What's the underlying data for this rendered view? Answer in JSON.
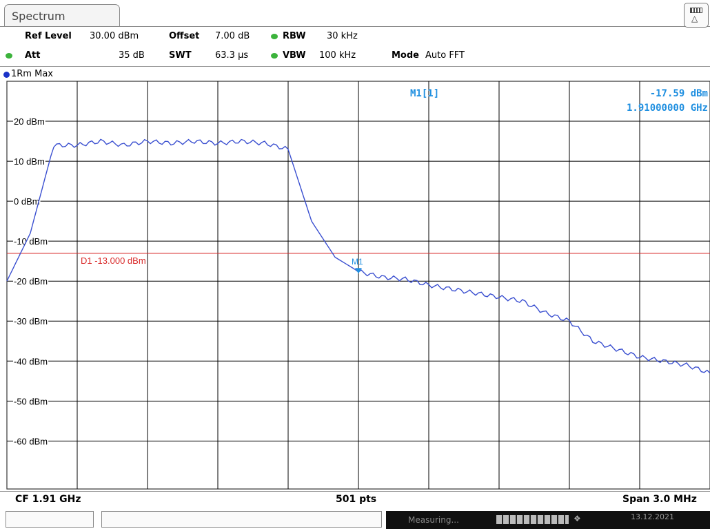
{
  "window": {
    "tab_label": "Spectrum"
  },
  "settings": {
    "ref_level_label": "Ref Level",
    "ref_level_value": "30.00 dBm",
    "offset_label": "Offset",
    "offset_value": "7.00 dB",
    "rbw_label": "RBW",
    "rbw_value": "30 kHz",
    "att_label": "Att",
    "att_value": "35 dB",
    "swt_label": "SWT",
    "swt_value": "63.3 µs",
    "vbw_label": "VBW",
    "vbw_value": "100 kHz",
    "mode_label": "Mode",
    "mode_value": "Auto FFT"
  },
  "trace_label": "1Rm Max",
  "marker": {
    "name": "M1[1]",
    "short": "M1",
    "level": "-17.59 dBm",
    "freq": "1.91000000 GHz"
  },
  "display_line": {
    "label": "D1 -13.000 dBm",
    "value": -13.0
  },
  "bottom": {
    "cf": "CF 1.91 GHz",
    "pts": "501 pts",
    "span": "Span 3.0 MHz"
  },
  "status": {
    "measuring": "Measuring...",
    "date": "13.12.2021"
  },
  "colors": {
    "trace": "#3a4fd0",
    "display_line": "#d92b2b",
    "marker": "#1f8fe0",
    "grid": "#000000"
  },
  "chart_data": {
    "type": "line",
    "title": "",
    "xlabel": "",
    "ylabel": "",
    "yticks": [
      "20 dBm",
      "10 dBm",
      "0 dBm",
      "-10 dBm",
      "-20 dBm",
      "-30 dBm",
      "-40 dBm",
      "-50 dBm",
      "-60 dBm"
    ],
    "ytick_values": [
      20,
      10,
      0,
      -10,
      -20,
      -30,
      -40,
      -50,
      -60
    ],
    "ylim": [
      -72,
      30
    ],
    "xlim": [
      1.9085,
      1.9115
    ],
    "x_unit": "GHz",
    "grid": true,
    "series": [
      {
        "x": [
          1.9085,
          1.9086,
          1.9087,
          1.9088,
          1.9089,
          1.909,
          1.9091,
          1.9092,
          1.9093,
          1.9094,
          1.9095,
          1.9096,
          1.9097,
          1.9098,
          1.9099,
          1.91,
          1.9101,
          1.9102,
          1.9103,
          1.9104,
          1.9105,
          1.9106,
          1.9107,
          1.9108,
          1.9109,
          1.911,
          1.9111,
          1.9112,
          1.9113,
          1.9114,
          1.9115
        ],
        "values": [
          -20,
          -8,
          14,
          14,
          15,
          14,
          15,
          14.5,
          15,
          14.5,
          15,
          14.5,
          13,
          -5,
          -14,
          -17.6,
          -19,
          -19.5,
          -21,
          -22,
          -23,
          -24,
          -25,
          -28,
          -30,
          -35,
          -37,
          -39,
          -40,
          -41,
          -43
        ]
      }
    ],
    "markers": [
      {
        "name": "M1",
        "x": 1.91,
        "y": -17.59
      }
    ]
  }
}
